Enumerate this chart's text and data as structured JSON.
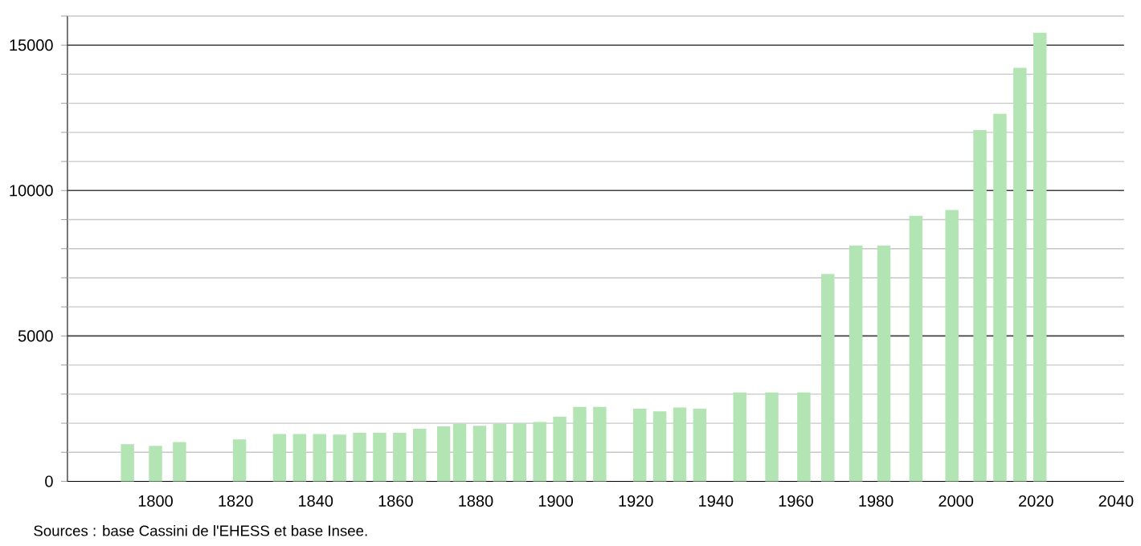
{
  "chart_data": {
    "type": "bar",
    "x": [
      1793,
      1800,
      1806,
      1821,
      1831,
      1836,
      1841,
      1846,
      1851,
      1856,
      1861,
      1866,
      1872,
      1876,
      1881,
      1886,
      1891,
      1896,
      1901,
      1906,
      1911,
      1921,
      1926,
      1931,
      1936,
      1946,
      1954,
      1962,
      1968,
      1975,
      1982,
      1990,
      1999,
      2006,
      2011,
      2016,
      2021
    ],
    "values": [
      1280,
      1220,
      1350,
      1440,
      1630,
      1630,
      1630,
      1610,
      1670,
      1670,
      1670,
      1810,
      1890,
      1980,
      1910,
      1980,
      2000,
      2040,
      2220,
      2560,
      2560,
      2500,
      2410,
      2540,
      2500,
      3060,
      3060,
      3060,
      7130,
      8110,
      8110,
      9130,
      9330,
      12080,
      12640,
      14220,
      15430
    ],
    "color": "#b3e4b3",
    "xlim": [
      1778,
      2042
    ],
    "xticks": [
      1800,
      1820,
      1840,
      1860,
      1880,
      1900,
      1920,
      1940,
      1960,
      1980,
      2000,
      2020,
      2040
    ],
    "ylim": [
      0,
      16000
    ],
    "yticks": [
      0,
      {
        "value": 1000,
        "label": null
      },
      {
        "value": 2000,
        "label": null
      },
      {
        "value": 3000,
        "label": null
      },
      {
        "value": 4000,
        "label": null
      },
      5000,
      {
        "value": 6000,
        "label": null
      },
      {
        "value": 7000,
        "label": null
      },
      {
        "value": 8000,
        "label": null
      },
      {
        "value": 9000,
        "label": null
      },
      10000,
      {
        "value": 11000,
        "label": null
      },
      {
        "value": 12000,
        "label": null
      },
      {
        "value": 13000,
        "label": null
      },
      {
        "value": 14000,
        "label": null
      },
      15000,
      {
        "value": 16000,
        "label": null
      }
    ],
    "grid": "y",
    "annotations": [
      "Sources : base Cassini de l'EHESS et base Insee."
    ]
  }
}
